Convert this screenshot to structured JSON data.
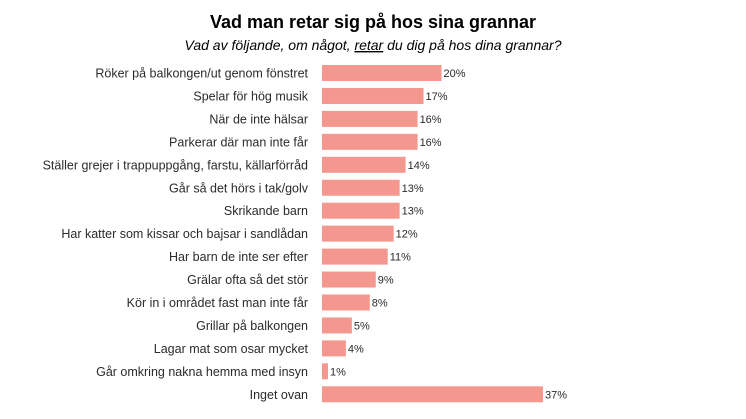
{
  "chart_data": {
    "type": "bar",
    "orientation": "horizontal",
    "title": "Vad man retar sig på hos sina grannar",
    "subtitle": {
      "before": "Vad av följande, om något, ",
      "emphasis": "retar",
      "after": " du dig på hos dina grannar?"
    },
    "categories": [
      "Röker på balkongen/ut genom fönstret",
      "Spelar för hög musik",
      "När de inte hälsar",
      "Parkerar där man inte får",
      "Ställer grejer i trappuppgång, farstu, källarförråd",
      "Går så det hörs i tak/golv",
      "Skrikande barn",
      "Har katter som kissar och bajsar i sandlådan",
      "Har barn de inte ser efter",
      "Grälar ofta så det stör",
      "Kör in i området fast man inte får",
      "Grillar på balkongen",
      "Lagar mat som osar mycket",
      "Går omkring nakna hemma med insyn",
      "Inget ovan"
    ],
    "values": [
      20,
      17,
      16,
      16,
      14,
      13,
      13,
      12,
      11,
      9,
      8,
      5,
      4,
      1,
      37
    ],
    "value_labels": [
      "20%",
      "17%",
      "16%",
      "16%",
      "14%",
      "13%",
      "13%",
      "12%",
      "11%",
      "9%",
      "8%",
      "5%",
      "4%",
      "1%",
      "37%"
    ],
    "xlim": [
      0,
      37
    ],
    "bar_color": "#f4978e",
    "text_color": "#2b2b2b"
  }
}
